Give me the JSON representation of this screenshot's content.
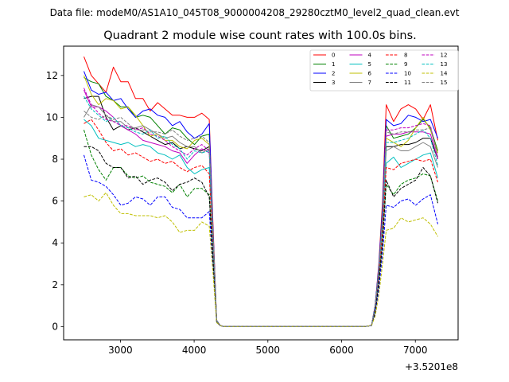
{
  "figure": {
    "note": "Data file: modeM0/AS1A10_045T08_9000004208_29280cztM0_level2_quad_clean.evt",
    "title": "Quadrant 2 module wise count rates with 100.0s bins."
  },
  "chart_data": {
    "type": "line",
    "title": "Quadrant 2 module wise count rates with 100.0s bins.",
    "xlabel": "",
    "ylabel": "",
    "x_offset_label": "+3.5201e8",
    "xlim": [
      2230,
      7580
    ],
    "ylim": [
      -0.63,
      13.4
    ],
    "xticks": [
      3000,
      4000,
      5000,
      6000,
      7000
    ],
    "yticks": [
      0,
      2,
      4,
      6,
      8,
      10,
      12
    ],
    "grid": false,
    "legend_position": "top-right",
    "legend_columns": 4,
    "x": [
      2505,
      2605,
      2705,
      2805,
      2905,
      3005,
      3105,
      3205,
      3305,
      3405,
      3505,
      3605,
      3705,
      3805,
      3905,
      4005,
      4105,
      4205,
      4255,
      4305,
      4355,
      4405,
      4505,
      4605,
      4705,
      4805,
      4905,
      5005,
      5105,
      5205,
      5305,
      5405,
      5505,
      5605,
      5705,
      5805,
      5905,
      6005,
      6105,
      6205,
      6305,
      6405,
      6455,
      6505,
      6555,
      6605,
      6705,
      6805,
      6905,
      7005,
      7105,
      7205,
      7305
    ],
    "series": [
      {
        "name": "0",
        "color": "#ff0000",
        "dash": "solid",
        "values": [
          12.9,
          12.0,
          11.6,
          11.2,
          12.4,
          11.7,
          11.7,
          10.9,
          10.9,
          10.3,
          10.7,
          10.4,
          10.1,
          10.1,
          10.0,
          10.0,
          10.2,
          9.9,
          5.0,
          0.3,
          0.05,
          0,
          0,
          0,
          0,
          0,
          0,
          0,
          0,
          0,
          0,
          0,
          0,
          0,
          0,
          0,
          0,
          0,
          0,
          0,
          0,
          0.05,
          1.0,
          3.0,
          6.0,
          10.6,
          9.8,
          10.4,
          10.6,
          10.4,
          9.9,
          10.6,
          8.9
        ]
      },
      {
        "name": "1",
        "color": "#008000",
        "dash": "solid",
        "values": [
          11.9,
          11.7,
          11.6,
          11.0,
          10.8,
          10.5,
          10.5,
          10.0,
          10.1,
          10.0,
          9.6,
          9.2,
          9.5,
          9.4,
          9.0,
          8.7,
          9.1,
          9.2,
          4.6,
          0.3,
          0.05,
          0,
          0,
          0,
          0,
          0,
          0,
          0,
          0,
          0,
          0,
          0,
          0,
          0,
          0,
          0,
          0,
          0,
          0,
          0,
          0,
          0.05,
          1.0,
          2.8,
          5.6,
          9.6,
          9.0,
          9.1,
          9.2,
          9.5,
          9.9,
          9.5,
          8.4
        ]
      },
      {
        "name": "2",
        "color": "#0000ff",
        "dash": "solid",
        "values": [
          12.2,
          11.3,
          11.1,
          11.2,
          10.8,
          10.9,
          10.4,
          10.0,
          10.3,
          10.4,
          10.1,
          10.0,
          9.6,
          9.8,
          9.3,
          9.0,
          9.2,
          9.7,
          4.8,
          0.3,
          0.05,
          0,
          0,
          0,
          0,
          0,
          0,
          0,
          0,
          0,
          0,
          0,
          0,
          0,
          0,
          0,
          0,
          0,
          0,
          0,
          0,
          0.05,
          1.0,
          2.9,
          5.7,
          9.9,
          9.6,
          9.7,
          10.1,
          10.0,
          9.8,
          9.9,
          9.0
        ]
      },
      {
        "name": "3",
        "color": "#000000",
        "dash": "solid",
        "values": [
          10.9,
          11.0,
          11.0,
          10.0,
          9.4,
          9.6,
          9.4,
          9.5,
          9.3,
          9.1,
          8.9,
          8.7,
          8.8,
          8.5,
          8.6,
          8.5,
          8.4,
          8.6,
          4.4,
          0.3,
          0.05,
          0,
          0,
          0,
          0,
          0,
          0,
          0,
          0,
          0,
          0,
          0,
          0,
          0,
          0,
          0,
          0,
          0,
          0,
          0,
          0,
          0.05,
          0.9,
          2.6,
          5.1,
          8.6,
          8.6,
          8.7,
          8.7,
          8.8,
          9.0,
          9.0,
          8.0
        ]
      },
      {
        "name": "4",
        "color": "#bf00bf",
        "dash": "solid",
        "values": [
          11.3,
          10.5,
          10.5,
          10.3,
          10.0,
          9.6,
          9.4,
          9.2,
          8.9,
          8.8,
          8.7,
          8.6,
          8.4,
          8.3,
          7.8,
          8.2,
          8.5,
          8.3,
          4.3,
          0.3,
          0.05,
          0,
          0,
          0,
          0,
          0,
          0,
          0,
          0,
          0,
          0,
          0,
          0,
          0,
          0,
          0,
          0,
          0,
          0,
          0,
          0,
          0.05,
          0.9,
          2.6,
          5.1,
          9.1,
          9.2,
          9.2,
          9.3,
          9.3,
          9.3,
          9.2,
          8.0
        ]
      },
      {
        "name": "5",
        "color": "#00bfbf",
        "dash": "solid",
        "values": [
          9.9,
          9.6,
          9.0,
          8.9,
          8.8,
          8.7,
          8.8,
          8.6,
          8.7,
          8.6,
          8.3,
          8.2,
          8.0,
          8.2,
          7.6,
          7.3,
          7.5,
          7.6,
          3.9,
          0.25,
          0.05,
          0,
          0,
          0,
          0,
          0,
          0,
          0,
          0,
          0,
          0,
          0,
          0,
          0,
          0,
          0,
          0,
          0,
          0,
          0,
          0,
          0.05,
          0.8,
          2.4,
          4.7,
          7.8,
          8.1,
          7.6,
          7.8,
          8.0,
          8.2,
          8.3,
          7.1
        ]
      },
      {
        "name": "6",
        "color": "#bfbf00",
        "dash": "solid",
        "values": [
          12.0,
          11.1,
          10.6,
          10.9,
          10.8,
          10.4,
          10.5,
          10.1,
          9.6,
          9.1,
          9.2,
          8.9,
          8.9,
          8.6,
          8.5,
          8.9,
          9.0,
          8.7,
          4.5,
          0.3,
          0.05,
          0,
          0,
          0,
          0,
          0,
          0,
          0,
          0,
          0,
          0,
          0,
          0,
          0,
          0,
          0,
          0,
          0,
          0,
          0,
          0,
          0.05,
          0.9,
          2.7,
          5.3,
          9.0,
          8.8,
          8.6,
          8.9,
          9.5,
          10.0,
          9.4,
          8.3
        ]
      },
      {
        "name": "7",
        "color": "#808080",
        "dash": "solid",
        "values": [
          10.0,
          10.6,
          10.5,
          10.1,
          9.8,
          9.8,
          9.5,
          9.5,
          9.6,
          9.4,
          9.2,
          9.0,
          9.1,
          8.8,
          8.6,
          8.6,
          8.3,
          8.5,
          4.4,
          0.3,
          0.05,
          0,
          0,
          0,
          0,
          0,
          0,
          0,
          0,
          0,
          0,
          0,
          0,
          0,
          0,
          0,
          0,
          0,
          0,
          0,
          0,
          0.05,
          0.9,
          2.6,
          5.1,
          8.4,
          8.6,
          8.4,
          8.4,
          8.6,
          8.8,
          8.6,
          7.6
        ]
      },
      {
        "name": "8",
        "color": "#ff0000",
        "dash": "dashed",
        "values": [
          9.7,
          9.9,
          9.4,
          8.8,
          8.4,
          8.5,
          8.2,
          8.3,
          8.1,
          7.9,
          8.0,
          7.8,
          7.9,
          7.6,
          7.4,
          7.6,
          7.7,
          7.3,
          3.8,
          0.25,
          0.05,
          0,
          0,
          0,
          0,
          0,
          0,
          0,
          0,
          0,
          0,
          0,
          0,
          0,
          0,
          0,
          0,
          0,
          0,
          0,
          0,
          0.05,
          0.8,
          2.3,
          4.5,
          7.6,
          7.5,
          7.8,
          7.9,
          8.0,
          7.9,
          8.0,
          6.9
        ]
      },
      {
        "name": "9",
        "color": "#008000",
        "dash": "dashed",
        "values": [
          9.4,
          8.2,
          7.5,
          7.0,
          7.6,
          7.6,
          7.2,
          7.1,
          7.2,
          6.9,
          6.8,
          6.7,
          6.4,
          6.8,
          6.2,
          6.6,
          6.6,
          6.3,
          3.3,
          0.2,
          0.05,
          0,
          0,
          0,
          0,
          0,
          0,
          0,
          0,
          0,
          0,
          0,
          0,
          0,
          0,
          0,
          0,
          0,
          0,
          0,
          0,
          0.05,
          0.7,
          2.1,
          4.0,
          6.8,
          6.3,
          6.8,
          7.0,
          7.1,
          7.3,
          7.2,
          6.0
        ]
      },
      {
        "name": "10",
        "color": "#0000ff",
        "dash": "dashed",
        "values": [
          8.2,
          7.0,
          6.9,
          6.7,
          6.3,
          5.8,
          5.9,
          6.2,
          6.1,
          5.8,
          6.2,
          6.2,
          5.7,
          5.6,
          5.2,
          5.2,
          5.2,
          5.5,
          2.9,
          0.2,
          0.05,
          0,
          0,
          0,
          0,
          0,
          0,
          0,
          0,
          0,
          0,
          0,
          0,
          0,
          0,
          0,
          0,
          0,
          0,
          0,
          0,
          0.05,
          0.6,
          1.8,
          3.5,
          5.8,
          5.7,
          6.0,
          6.1,
          5.8,
          6.1,
          6.3,
          4.9
        ]
      },
      {
        "name": "11",
        "color": "#000000",
        "dash": "dashed",
        "values": [
          8.6,
          8.6,
          8.4,
          7.8,
          7.6,
          7.6,
          7.1,
          7.2,
          6.8,
          7.0,
          7.1,
          6.9,
          6.5,
          6.8,
          6.9,
          7.1,
          6.9,
          6.2,
          3.3,
          0.2,
          0.05,
          0,
          0,
          0,
          0,
          0,
          0,
          0,
          0,
          0,
          0,
          0,
          0,
          0,
          0,
          0,
          0,
          0,
          0,
          0,
          0,
          0.05,
          0.7,
          2.1,
          4.0,
          7.0,
          6.2,
          6.6,
          6.8,
          7.0,
          7.6,
          7.2,
          5.9
        ]
      },
      {
        "name": "12",
        "color": "#bf00bf",
        "dash": "dashed",
        "values": [
          11.4,
          10.6,
          10.2,
          9.9,
          9.8,
          9.6,
          9.6,
          9.4,
          9.5,
          9.2,
          9.1,
          8.9,
          8.6,
          8.4,
          8.2,
          8.5,
          8.7,
          8.4,
          4.3,
          0.3,
          0.05,
          0,
          0,
          0,
          0,
          0,
          0,
          0,
          0,
          0,
          0,
          0,
          0,
          0,
          0,
          0,
          0,
          0,
          0,
          0,
          0,
          0.05,
          0.9,
          2.6,
          5.1,
          9.4,
          9.4,
          9.5,
          9.5,
          9.6,
          9.7,
          9.6,
          8.1
        ]
      },
      {
        "name": "13",
        "color": "#00bfbf",
        "dash": "dashed",
        "values": [
          11.0,
          10.4,
          10.1,
          9.8,
          10.0,
          9.6,
          9.5,
          9.3,
          9.2,
          9.4,
          9.0,
          9.1,
          8.7,
          8.5,
          8.0,
          8.4,
          8.3,
          8.4,
          4.3,
          0.3,
          0.05,
          0,
          0,
          0,
          0,
          0,
          0,
          0,
          0,
          0,
          0,
          0,
          0,
          0,
          0,
          0,
          0,
          0,
          0,
          0,
          0,
          0.05,
          0.9,
          2.6,
          5.1,
          8.8,
          8.8,
          8.9,
          9.0,
          9.2,
          9.4,
          9.0,
          7.7
        ]
      },
      {
        "name": "14",
        "color": "#bfbf00",
        "dash": "dashed",
        "values": [
          6.2,
          6.3,
          6.0,
          6.4,
          5.8,
          5.4,
          5.4,
          5.3,
          5.3,
          5.3,
          5.2,
          5.3,
          5.0,
          4.5,
          4.6,
          4.6,
          5.0,
          4.8,
          2.6,
          0.2,
          0.05,
          0,
          0,
          0,
          0,
          0,
          0,
          0,
          0,
          0,
          0,
          0,
          0,
          0,
          0,
          0,
          0,
          0,
          0,
          0,
          0,
          0.05,
          0.5,
          1.5,
          3.0,
          4.6,
          4.7,
          5.2,
          5.0,
          5.1,
          5.2,
          4.9,
          4.3
        ]
      },
      {
        "name": "15",
        "color": "#808080",
        "dash": "dashed",
        "values": [
          10.3,
          10.0,
          9.9,
          10.1,
          9.9,
          10.0,
          9.7,
          9.4,
          9.4,
          9.3,
          9.3,
          9.2,
          9.4,
          9.1,
          8.9,
          9.0,
          9.1,
          8.8,
          4.5,
          0.3,
          0.05,
          0,
          0,
          0,
          0,
          0,
          0,
          0,
          0,
          0,
          0,
          0,
          0,
          0,
          0,
          0,
          0,
          0,
          0,
          0,
          0,
          0.05,
          0.9,
          2.7,
          5.2,
          9.3,
          9.2,
          9.3,
          9.3,
          9.4,
          9.4,
          9.5,
          8.1
        ]
      }
    ]
  }
}
